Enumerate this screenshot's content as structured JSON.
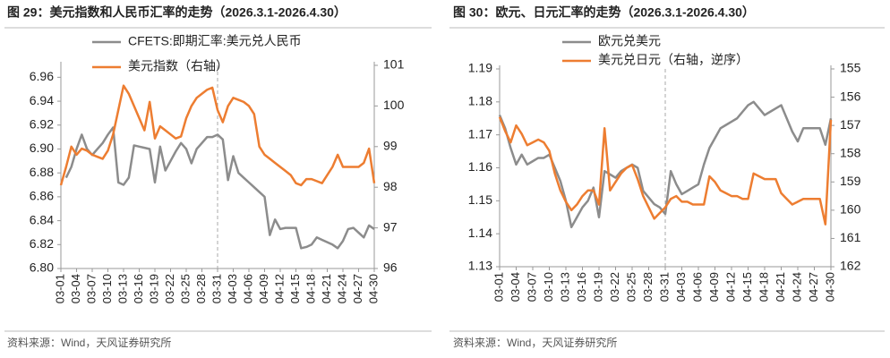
{
  "chart_data": [
    {
      "type": "line",
      "title": "图 29：美元指数和人民币汇率的走势（2026.3.1-2026.4.30）",
      "source": "资料来源：Wind，天风证券研究所",
      "categories": [
        "03-01",
        null,
        null,
        "03-04",
        null,
        null,
        "03-07",
        null,
        null,
        "03-10",
        null,
        null,
        "03-13",
        null,
        null,
        "03-16",
        null,
        null,
        "03-19",
        null,
        null,
        "03-22",
        null,
        null,
        "03-25",
        null,
        null,
        "03-28",
        null,
        null,
        "03-31",
        null,
        null,
        "04-03",
        null,
        null,
        "04-06",
        null,
        null,
        "04-09",
        null,
        null,
        "04-12",
        null,
        null,
        "04-15",
        null,
        null,
        "04-18",
        null,
        null,
        "04-21",
        null,
        null,
        "04-24",
        null,
        null,
        "04-27",
        null,
        null,
        "04-30"
      ],
      "series": [
        {
          "name": "CFETS:即期汇率:美元兑人民币",
          "color": "#8c8c8c",
          "axis": "y",
          "values": [
            null,
            6.876,
            6.885,
            6.9,
            6.912,
            6.9,
            6.895,
            6.9,
            6.905,
            6.912,
            6.918,
            6.872,
            6.87,
            6.876,
            6.903,
            6.902,
            6.901,
            6.9,
            6.872,
            6.902,
            6.882,
            6.89,
            6.898,
            6.905,
            6.9,
            6.888,
            6.9,
            6.905,
            6.91,
            6.91,
            6.912,
            6.908,
            6.874,
            6.894,
            6.88,
            6.876,
            6.872,
            6.868,
            6.864,
            6.86,
            6.828,
            6.841,
            6.833,
            6.834,
            6.834,
            6.834,
            6.817,
            6.818,
            6.82,
            6.826,
            6.824,
            6.822,
            6.82,
            6.817,
            6.823,
            6.833,
            6.834,
            6.83,
            6.826,
            6.836,
            6.833
          ]
        },
        {
          "name": "美元指数（右轴）",
          "color": "#ed7d31",
          "axis": "y2",
          "values": [
            98.05,
            98.5,
            99.0,
            98.8,
            98.95,
            98.9,
            98.8,
            98.75,
            98.7,
            98.9,
            99.3,
            99.9,
            100.5,
            100.3,
            100.0,
            99.7,
            99.4,
            100.1,
            99.2,
            99.5,
            99.4,
            99.3,
            99.2,
            99.25,
            99.7,
            100.0,
            100.2,
            100.3,
            100.4,
            100.45,
            99.9,
            99.6,
            100.0,
            100.2,
            100.15,
            100.1,
            100.0,
            99.8,
            99.0,
            98.8,
            98.7,
            98.6,
            98.5,
            98.4,
            98.3,
            98.1,
            98.05,
            98.2,
            98.2,
            98.15,
            98.1,
            98.3,
            98.5,
            98.8,
            98.5,
            98.5,
            98.5,
            98.5,
            98.6,
            98.95,
            98.1
          ]
        }
      ],
      "ylim": [
        6.8,
        6.97
      ],
      "yticks": [
        {
          "value": 6.8,
          "label": "6.80"
        },
        6.82,
        6.84,
        6.86,
        6.88,
        {
          "value": 6.9,
          "label": "6.90"
        },
        6.92,
        6.94,
        6.96
      ],
      "y2lim": [
        96,
        101
      ],
      "y2ticks": [
        96,
        97,
        98,
        99,
        100,
        101
      ],
      "y2_inverted": false
    },
    {
      "type": "line",
      "title": "图 30：欧元、日元汇率的走势（2026.3.1-2026.4.30）",
      "source": "资料来源：Wind，天风证券研究所",
      "categories": [
        "03-01",
        null,
        null,
        "03-04",
        null,
        null,
        "03-07",
        null,
        null,
        "03-10",
        null,
        null,
        "03-13",
        null,
        null,
        "03-16",
        null,
        null,
        "03-19",
        null,
        null,
        "03-22",
        null,
        null,
        "03-25",
        null,
        null,
        "03-28",
        null,
        null,
        "03-31",
        null,
        null,
        "04-03",
        null,
        null,
        "04-06",
        null,
        null,
        "04-09",
        null,
        null,
        "04-12",
        null,
        null,
        "04-15",
        null,
        null,
        "04-18",
        null,
        null,
        "04-21",
        null,
        null,
        "04-24",
        null,
        null,
        "04-27",
        null,
        null,
        "04-30"
      ],
      "series": [
        {
          "name": "欧元兑美元",
          "color": "#8c8c8c",
          "axis": "y",
          "values": [
            1.176,
            1.172,
            1.166,
            1.161,
            1.164,
            1.161,
            1.162,
            1.163,
            1.163,
            1.164,
            1.16,
            1.156,
            1.15,
            1.142,
            1.145,
            1.148,
            1.15,
            1.154,
            1.145,
            1.159,
            1.158,
            1.157,
            1.159,
            1.16,
            1.161,
            1.16,
            1.153,
            1.151,
            1.149,
            1.148,
            1.146,
            1.159,
            1.155,
            1.152,
            1.153,
            1.154,
            1.155,
            1.161,
            1.166,
            1.169,
            1.172,
            1.173,
            1.174,
            1.175,
            1.177,
            1.179,
            1.18,
            1.178,
            1.176,
            1.177,
            1.178,
            1.179,
            1.175,
            1.171,
            1.168,
            1.172,
            1.172,
            1.172,
            1.172,
            1.167,
            1.175
          ]
        },
        {
          "name": "美元兑日元（右轴，逆序）",
          "color": "#ed7d31",
          "axis": "y2",
          "values": [
            156.7,
            157.2,
            157.6,
            157.0,
            157.3,
            157.7,
            157.6,
            157.5,
            157.6,
            157.9,
            158.7,
            159.3,
            159.7,
            160.0,
            159.8,
            159.5,
            159.3,
            159.3,
            159.8,
            157.1,
            159.3,
            159.0,
            158.7,
            158.5,
            158.4,
            158.9,
            159.5,
            159.9,
            160.3,
            160.1,
            159.9,
            159.6,
            159.5,
            159.7,
            159.7,
            159.8,
            159.8,
            159.8,
            158.8,
            159.0,
            159.3,
            159.4,
            159.5,
            159.5,
            159.6,
            159.6,
            158.7,
            158.8,
            158.9,
            158.9,
            158.9,
            159.4,
            159.6,
            159.8,
            159.7,
            159.6,
            159.6,
            159.6,
            159.6,
            160.5,
            156.8
          ]
        }
      ],
      "ylim": [
        1.13,
        1.19
      ],
      "yticks": [
        1.13,
        1.14,
        1.15,
        1.16,
        1.17,
        1.18,
        1.19
      ],
      "y2lim": [
        155,
        162
      ],
      "y2ticks": [
        155,
        156,
        157,
        158,
        159,
        160,
        161,
        162
      ],
      "y2_inverted": true
    }
  ]
}
